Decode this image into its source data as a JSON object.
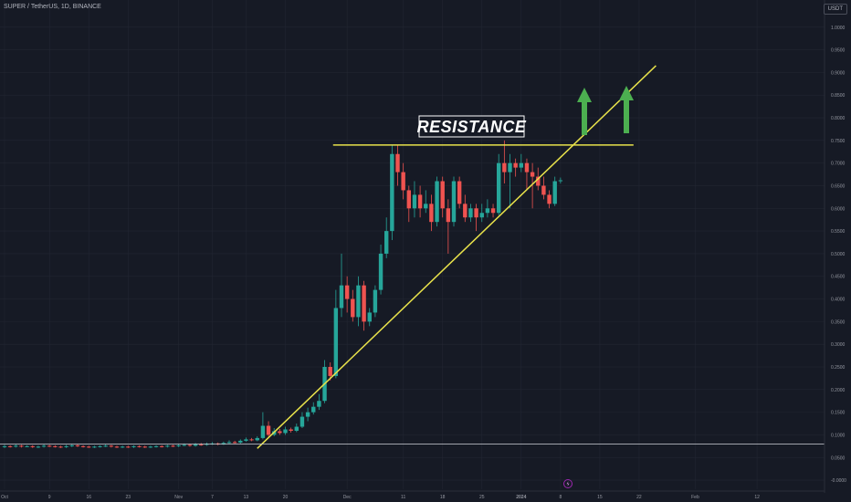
{
  "header": {
    "symbol_line": "SUPER / TetherUS, 1D, BINANCE",
    "currency": "USDT"
  },
  "colors": {
    "background": "#161a25",
    "grid": "#222632",
    "up": "#26a69a",
    "down": "#ef5350",
    "trendline": "#e8e24b",
    "arrow": "#4caf50"
  },
  "chart_data": {
    "type": "candlestick",
    "y_axis": {
      "range": [
        -0.02,
        1.06
      ],
      "ticks": [
        "1.0000",
        "0.9500",
        "0.9000",
        "0.8500",
        "0.8000",
        "0.7500",
        "0.7000",
        "0.6500",
        "0.6000",
        "0.5500",
        "0.5000",
        "0.4500",
        "0.4000",
        "0.3500",
        "0.3000",
        "0.2500",
        "0.2000",
        "0.1500",
        "0.1000",
        "0.0500",
        "-0.0000"
      ]
    },
    "x_axis": {
      "ticks": [
        "Oct",
        "9",
        "16",
        "23",
        "Nov",
        "7",
        "13",
        "20",
        "Dec",
        "11",
        "18",
        "25",
        "2024",
        "8",
        "15",
        "22",
        "Feb",
        "12"
      ],
      "bold_tick": "2024"
    },
    "candles": [
      [
        0.073,
        0.075,
        0.078,
        0.071
      ],
      [
        0.075,
        0.074,
        0.077,
        0.072
      ],
      [
        0.074,
        0.076,
        0.079,
        0.072
      ],
      [
        0.076,
        0.074,
        0.078,
        0.072
      ],
      [
        0.074,
        0.075,
        0.077,
        0.073
      ],
      [
        0.075,
        0.073,
        0.077,
        0.071
      ],
      [
        0.073,
        0.074,
        0.076,
        0.071
      ],
      [
        0.074,
        0.076,
        0.079,
        0.072
      ],
      [
        0.076,
        0.075,
        0.078,
        0.073
      ],
      [
        0.075,
        0.074,
        0.077,
        0.072
      ],
      [
        0.074,
        0.073,
        0.076,
        0.071
      ],
      [
        0.073,
        0.075,
        0.078,
        0.071
      ],
      [
        0.075,
        0.077,
        0.08,
        0.073
      ],
      [
        0.077,
        0.075,
        0.079,
        0.073
      ],
      [
        0.075,
        0.074,
        0.077,
        0.072
      ],
      [
        0.074,
        0.073,
        0.076,
        0.071
      ],
      [
        0.073,
        0.074,
        0.076,
        0.071
      ],
      [
        0.074,
        0.075,
        0.077,
        0.072
      ],
      [
        0.075,
        0.076,
        0.079,
        0.073
      ],
      [
        0.076,
        0.074,
        0.078,
        0.072
      ],
      [
        0.074,
        0.073,
        0.076,
        0.071
      ],
      [
        0.073,
        0.074,
        0.076,
        0.071
      ],
      [
        0.074,
        0.073,
        0.076,
        0.071
      ],
      [
        0.073,
        0.075,
        0.077,
        0.071
      ],
      [
        0.075,
        0.074,
        0.077,
        0.072
      ],
      [
        0.074,
        0.073,
        0.076,
        0.071
      ],
      [
        0.073,
        0.074,
        0.076,
        0.071
      ],
      [
        0.074,
        0.075,
        0.077,
        0.072
      ],
      [
        0.075,
        0.074,
        0.077,
        0.072
      ],
      [
        0.074,
        0.076,
        0.078,
        0.072
      ],
      [
        0.076,
        0.075,
        0.078,
        0.073
      ],
      [
        0.075,
        0.077,
        0.08,
        0.073
      ],
      [
        0.077,
        0.078,
        0.081,
        0.075
      ],
      [
        0.078,
        0.076,
        0.08,
        0.074
      ],
      [
        0.076,
        0.079,
        0.082,
        0.074
      ],
      [
        0.079,
        0.078,
        0.082,
        0.076
      ],
      [
        0.078,
        0.08,
        0.083,
        0.076
      ],
      [
        0.08,
        0.081,
        0.084,
        0.078
      ],
      [
        0.081,
        0.079,
        0.083,
        0.077
      ],
      [
        0.079,
        0.082,
        0.085,
        0.078
      ],
      [
        0.082,
        0.084,
        0.088,
        0.08
      ],
      [
        0.084,
        0.083,
        0.087,
        0.081
      ],
      [
        0.083,
        0.087,
        0.09,
        0.081
      ],
      [
        0.087,
        0.09,
        0.094,
        0.085
      ],
      [
        0.09,
        0.088,
        0.093,
        0.086
      ],
      [
        0.088,
        0.093,
        0.097,
        0.086
      ],
      [
        0.093,
        0.12,
        0.15,
        0.09
      ],
      [
        0.12,
        0.1,
        0.13,
        0.096
      ],
      [
        0.1,
        0.108,
        0.115,
        0.097
      ],
      [
        0.108,
        0.104,
        0.113,
        0.1
      ],
      [
        0.104,
        0.112,
        0.118,
        0.1
      ],
      [
        0.112,
        0.109,
        0.116,
        0.105
      ],
      [
        0.109,
        0.118,
        0.125,
        0.106
      ],
      [
        0.118,
        0.14,
        0.15,
        0.115
      ],
      [
        0.14,
        0.15,
        0.16,
        0.13
      ],
      [
        0.15,
        0.162,
        0.172,
        0.145
      ],
      [
        0.162,
        0.175,
        0.19,
        0.155
      ],
      [
        0.175,
        0.25,
        0.265,
        0.17
      ],
      [
        0.25,
        0.23,
        0.26,
        0.22
      ],
      [
        0.23,
        0.38,
        0.42,
        0.225
      ],
      [
        0.38,
        0.43,
        0.5,
        0.36
      ],
      [
        0.43,
        0.4,
        0.45,
        0.37
      ],
      [
        0.4,
        0.36,
        0.42,
        0.35
      ],
      [
        0.36,
        0.43,
        0.45,
        0.34
      ],
      [
        0.43,
        0.35,
        0.44,
        0.33
      ],
      [
        0.35,
        0.37,
        0.38,
        0.34
      ],
      [
        0.37,
        0.42,
        0.43,
        0.36
      ],
      [
        0.42,
        0.5,
        0.52,
        0.41
      ],
      [
        0.5,
        0.55,
        0.58,
        0.49
      ],
      [
        0.55,
        0.72,
        0.74,
        0.53
      ],
      [
        0.72,
        0.68,
        0.74,
        0.65
      ],
      [
        0.68,
        0.64,
        0.7,
        0.62
      ],
      [
        0.64,
        0.6,
        0.65,
        0.57
      ],
      [
        0.6,
        0.63,
        0.66,
        0.58
      ],
      [
        0.63,
        0.6,
        0.65,
        0.58
      ],
      [
        0.6,
        0.61,
        0.64,
        0.59
      ],
      [
        0.61,
        0.57,
        0.63,
        0.55
      ],
      [
        0.57,
        0.66,
        0.67,
        0.56
      ],
      [
        0.66,
        0.6,
        0.67,
        0.58
      ],
      [
        0.6,
        0.57,
        0.62,
        0.5
      ],
      [
        0.57,
        0.66,
        0.67,
        0.56
      ],
      [
        0.66,
        0.61,
        0.67,
        0.6
      ],
      [
        0.61,
        0.58,
        0.63,
        0.57
      ],
      [
        0.58,
        0.6,
        0.61,
        0.57
      ],
      [
        0.6,
        0.58,
        0.61,
        0.55
      ],
      [
        0.58,
        0.59,
        0.61,
        0.57
      ],
      [
        0.59,
        0.6,
        0.62,
        0.58
      ],
      [
        0.6,
        0.59,
        0.61,
        0.58
      ],
      [
        0.59,
        0.7,
        0.72,
        0.585
      ],
      [
        0.7,
        0.68,
        0.75,
        0.655
      ],
      [
        0.68,
        0.7,
        0.72,
        0.6
      ],
      [
        0.7,
        0.69,
        0.71,
        0.67
      ],
      [
        0.69,
        0.7,
        0.72,
        0.68
      ],
      [
        0.7,
        0.68,
        0.71,
        0.64
      ],
      [
        0.68,
        0.67,
        0.7,
        0.6
      ],
      [
        0.67,
        0.65,
        0.69,
        0.64
      ],
      [
        0.65,
        0.63,
        0.67,
        0.62
      ],
      [
        0.63,
        0.61,
        0.64,
        0.6
      ],
      [
        0.61,
        0.66,
        0.67,
        0.605
      ],
      [
        0.66,
        0.662,
        0.668,
        0.655
      ]
    ],
    "annotations": {
      "label": "RESISTANCE",
      "resistance_level": 0.74,
      "support_trendline_from": {
        "date": "Nov 15",
        "price": 0.07
      },
      "support_trendline_to": {
        "date": "Jan 25",
        "price": 0.915
      },
      "arrows": 2
    }
  }
}
